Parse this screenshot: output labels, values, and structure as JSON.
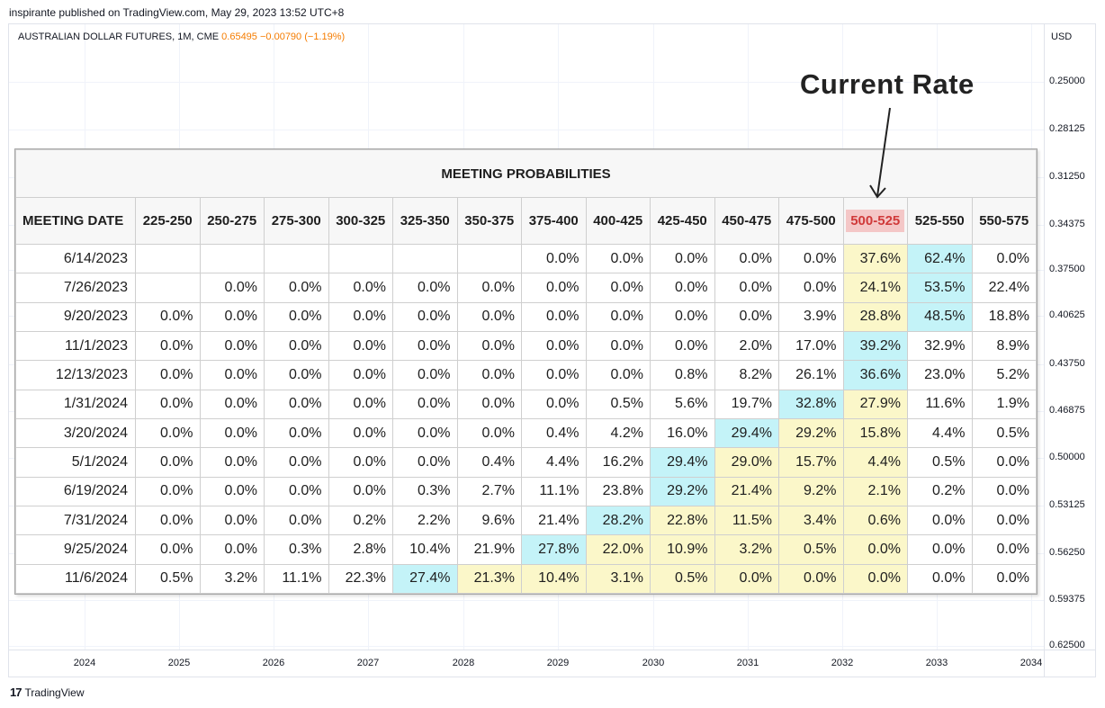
{
  "header": {
    "published": "inspirante published on TradingView.com, May 29, 2023 13:52 UTC+8",
    "symbol": "AUSTRALIAN DOLLAR FUTURES, 1M, CME",
    "price": "0.65495",
    "change": "−0.00790 (−1.19%)",
    "currency": "USD"
  },
  "price_scale": [
    "0.25000",
    "0.28125",
    "0.31250",
    "0.34375",
    "0.37500",
    "0.40625",
    "0.43750",
    "0.46875",
    "0.50000",
    "0.53125",
    "0.56250",
    "0.59375",
    "0.62500"
  ],
  "time_scale": [
    "2024",
    "2025",
    "2026",
    "2027",
    "2028",
    "2029",
    "2030",
    "2031",
    "2032",
    "2033",
    "2034"
  ],
  "annotation": {
    "text": "Current Rate"
  },
  "table": {
    "title": "MEETING PROBABILITIES",
    "date_header": "MEETING DATE",
    "ranges": [
      "225-250",
      "250-275",
      "275-300",
      "300-325",
      "325-350",
      "350-375",
      "375-400",
      "400-425",
      "425-450",
      "450-475",
      "475-500",
      "500-525",
      "525-550",
      "550-575"
    ],
    "current_range_index": 11,
    "rows": [
      {
        "date": "6/14/2023",
        "values": [
          "",
          "",
          "",
          "",
          "",
          "",
          "0.0%",
          "0.0%",
          "0.0%",
          "0.0%",
          "0.0%",
          "37.6%",
          "62.4%",
          "0.0%"
        ],
        "max_index": 12
      },
      {
        "date": "7/26/2023",
        "values": [
          "",
          "0.0%",
          "0.0%",
          "0.0%",
          "0.0%",
          "0.0%",
          "0.0%",
          "0.0%",
          "0.0%",
          "0.0%",
          "0.0%",
          "24.1%",
          "53.5%",
          "22.4%"
        ],
        "max_index": 12
      },
      {
        "date": "9/20/2023",
        "values": [
          "0.0%",
          "0.0%",
          "0.0%",
          "0.0%",
          "0.0%",
          "0.0%",
          "0.0%",
          "0.0%",
          "0.0%",
          "0.0%",
          "3.9%",
          "28.8%",
          "48.5%",
          "18.8%"
        ],
        "max_index": 12
      },
      {
        "date": "11/1/2023",
        "values": [
          "0.0%",
          "0.0%",
          "0.0%",
          "0.0%",
          "0.0%",
          "0.0%",
          "0.0%",
          "0.0%",
          "0.0%",
          "2.0%",
          "17.0%",
          "39.2%",
          "32.9%",
          "8.9%"
        ],
        "max_index": 11
      },
      {
        "date": "12/13/2023",
        "values": [
          "0.0%",
          "0.0%",
          "0.0%",
          "0.0%",
          "0.0%",
          "0.0%",
          "0.0%",
          "0.0%",
          "0.8%",
          "8.2%",
          "26.1%",
          "36.6%",
          "23.0%",
          "5.2%"
        ],
        "max_index": 11
      },
      {
        "date": "1/31/2024",
        "values": [
          "0.0%",
          "0.0%",
          "0.0%",
          "0.0%",
          "0.0%",
          "0.0%",
          "0.0%",
          "0.5%",
          "5.6%",
          "19.7%",
          "32.8%",
          "27.9%",
          "11.6%",
          "1.9%"
        ],
        "max_index": 10
      },
      {
        "date": "3/20/2024",
        "values": [
          "0.0%",
          "0.0%",
          "0.0%",
          "0.0%",
          "0.0%",
          "0.0%",
          "0.4%",
          "4.2%",
          "16.0%",
          "29.4%",
          "29.2%",
          "15.8%",
          "4.4%",
          "0.5%"
        ],
        "max_index": 9
      },
      {
        "date": "5/1/2024",
        "values": [
          "0.0%",
          "0.0%",
          "0.0%",
          "0.0%",
          "0.0%",
          "0.4%",
          "4.4%",
          "16.2%",
          "29.4%",
          "29.0%",
          "15.7%",
          "4.4%",
          "0.5%",
          "0.0%"
        ],
        "max_index": 8
      },
      {
        "date": "6/19/2024",
        "values": [
          "0.0%",
          "0.0%",
          "0.0%",
          "0.0%",
          "0.3%",
          "2.7%",
          "11.1%",
          "23.8%",
          "29.2%",
          "21.4%",
          "9.2%",
          "2.1%",
          "0.2%",
          "0.0%"
        ],
        "max_index": 8
      },
      {
        "date": "7/31/2024",
        "values": [
          "0.0%",
          "0.0%",
          "0.0%",
          "0.2%",
          "2.2%",
          "9.6%",
          "21.4%",
          "28.2%",
          "22.8%",
          "11.5%",
          "3.4%",
          "0.6%",
          "0.0%",
          "0.0%"
        ],
        "max_index": 7
      },
      {
        "date": "9/25/2024",
        "values": [
          "0.0%",
          "0.0%",
          "0.3%",
          "2.8%",
          "10.4%",
          "21.9%",
          "27.8%",
          "22.0%",
          "10.9%",
          "3.2%",
          "0.5%",
          "0.0%",
          "0.0%",
          "0.0%"
        ],
        "max_index": 6
      },
      {
        "date": "11/6/2024",
        "values": [
          "0.5%",
          "3.2%",
          "11.1%",
          "22.3%",
          "27.4%",
          "21.3%",
          "10.4%",
          "3.1%",
          "0.5%",
          "0.0%",
          "0.0%",
          "0.0%",
          "0.0%",
          "0.0%"
        ],
        "max_index": 4
      }
    ]
  },
  "colors": {
    "max_cell": "#c4f3f8",
    "current_rate_column": "#fbf7c9",
    "rate_cut_region": "#fbf7c9",
    "current_header": "#f4c7c7",
    "price_text": "#f57c00"
  },
  "footer": {
    "brand": "TradingView",
    "logo_icon": "tradingview-logo-icon"
  }
}
